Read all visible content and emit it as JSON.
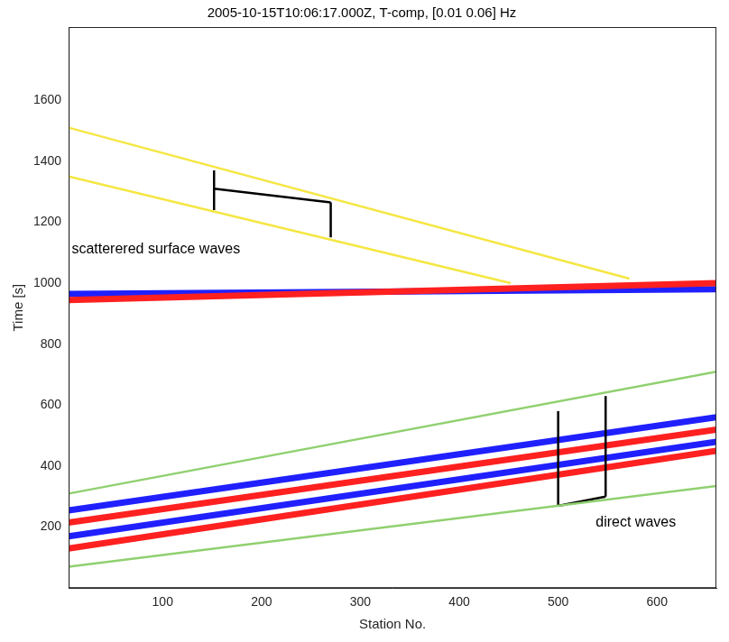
{
  "chart_data": {
    "type": "line",
    "title": "2005-10-15T10:06:17.000Z, T-comp, [0.01 0.06] Hz",
    "x_label": "Station No.",
    "y_label": "Time [s]",
    "xlim": [
      5,
      660
    ],
    "ylim": [
      0,
      1840
    ],
    "xticks": [
      100,
      200,
      300,
      400,
      500,
      600
    ],
    "yticks": [
      200,
      400,
      600,
      800,
      1000,
      1200,
      1400,
      1600
    ],
    "grid": false,
    "series": [
      {
        "color": "#ff2020",
        "line_style": "solid",
        "x": [
          5,
          660
        ],
        "values": [
          130,
          450
        ]
      },
      {
        "color": "#2020ff",
        "line_style": "solid",
        "x": [
          5,
          660
        ],
        "values": [
          170,
          480
        ]
      },
      {
        "color": "#ff2020",
        "line_style": "solid",
        "x": [
          5,
          660
        ],
        "values": [
          215,
          520
        ]
      },
      {
        "color": "#2020ff",
        "line_style": "solid",
        "x": [
          5,
          660
        ],
        "values": [
          255,
          560
        ]
      },
      {
        "color": "#ff2020",
        "line_style": "solid",
        "x": [
          5,
          660
        ],
        "values": [
          945,
          1000
        ]
      },
      {
        "color": "#2020ff",
        "line_style": "solid",
        "x": [
          5,
          660
        ],
        "values": [
          965,
          980
        ]
      },
      {
        "color": "#f5e642",
        "line_style": "solid",
        "x": [
          5,
          572
        ],
        "values": [
          1510,
          1015
        ]
      },
      {
        "color": "#f5e642",
        "line_style": "solid",
        "x": [
          5,
          452
        ],
        "values": [
          1350,
          1000
        ]
      },
      {
        "color": "#90d070",
        "line_style": "solid",
        "x": [
          5,
          660
        ],
        "values": [
          310,
          710
        ]
      },
      {
        "color": "#90d070",
        "line_style": "solid",
        "x": [
          5,
          660
        ],
        "values": [
          70,
          335
        ]
      },
      {
        "color": "#000000",
        "line_style": "solid",
        "x": [
          152,
          152
        ],
        "values": [
          1240,
          1370
        ]
      },
      {
        "color": "#000000",
        "line_style": "solid",
        "x": [
          152,
          270
        ],
        "values": [
          1310,
          1265
        ]
      },
      {
        "color": "#000000",
        "line_style": "solid",
        "x": [
          270,
          270
        ],
        "values": [
          1265,
          1150
        ]
      },
      {
        "color": "#000000",
        "line_style": "solid",
        "x": [
          500,
          500
        ],
        "values": [
          270,
          580
        ]
      },
      {
        "color": "#000000",
        "line_style": "solid",
        "x": [
          500,
          548
        ],
        "values": [
          270,
          300
        ]
      },
      {
        "color": "#000000",
        "line_style": "solid",
        "x": [
          548,
          548
        ],
        "values": [
          300,
          630
        ]
      }
    ],
    "annotations": [
      {
        "text": "scatterered surface waves",
        "x": 8,
        "y": 1110
      },
      {
        "text": "direct waves",
        "x": 538,
        "y": 215
      }
    ]
  }
}
